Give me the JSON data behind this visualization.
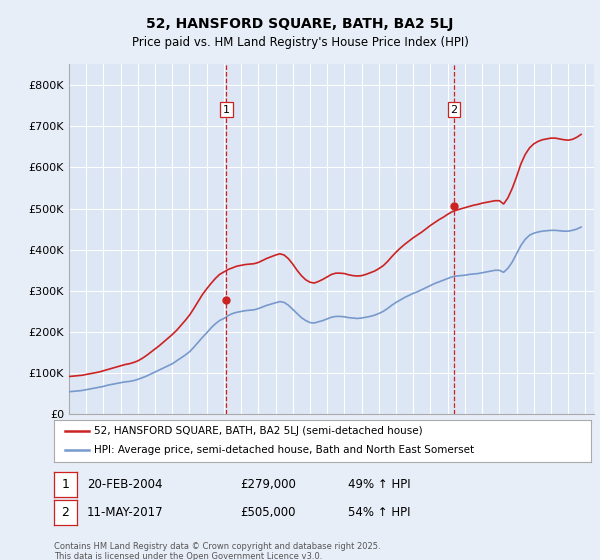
{
  "title": "52, HANSFORD SQUARE, BATH, BA2 5LJ",
  "subtitle": "Price paid vs. HM Land Registry's House Price Index (HPI)",
  "bg_color": "#e8eef8",
  "plot_bg_color": "#dde6f4",
  "grid_color": "#ffffff",
  "hpi_color": "#7799cc",
  "price_color": "#cc2222",
  "dashed_color": "#cc2222",
  "ylim": [
    0,
    850000
  ],
  "yticks": [
    0,
    100000,
    200000,
    300000,
    400000,
    500000,
    600000,
    700000,
    800000
  ],
  "ytick_labels": [
    "£0",
    "£100K",
    "£200K",
    "£300K",
    "£400K",
    "£500K",
    "£600K",
    "£700K",
    "£800K"
  ],
  "sale1_x": 2004.14,
  "sale1_price": 279000,
  "sale2_x": 2017.36,
  "sale2_price": 505000,
  "legend_line1": "52, HANSFORD SQUARE, BATH, BA2 5LJ (semi-detached house)",
  "legend_line2": "HPI: Average price, semi-detached house, Bath and North East Somerset",
  "table_row1": [
    "1",
    "20-FEB-2004",
    "£279,000",
    "49% ↑ HPI"
  ],
  "table_row2": [
    "2",
    "11-MAY-2017",
    "£505,000",
    "54% ↑ HPI"
  ],
  "footnote": "Contains HM Land Registry data © Crown copyright and database right 2025.\nThis data is licensed under the Open Government Licence v3.0.",
  "hpi_data_years": [
    1995,
    1995.25,
    1995.5,
    1995.75,
    1996,
    1996.25,
    1996.5,
    1996.75,
    1997,
    1997.25,
    1997.5,
    1997.75,
    1998,
    1998.25,
    1998.5,
    1998.75,
    1999,
    1999.25,
    1999.5,
    1999.75,
    2000,
    2000.25,
    2000.5,
    2000.75,
    2001,
    2001.25,
    2001.5,
    2001.75,
    2002,
    2002.25,
    2002.5,
    2002.75,
    2003,
    2003.25,
    2003.5,
    2003.75,
    2004,
    2004.25,
    2004.5,
    2004.75,
    2005,
    2005.25,
    2005.5,
    2005.75,
    2006,
    2006.25,
    2006.5,
    2006.75,
    2007,
    2007.25,
    2007.5,
    2007.75,
    2008,
    2008.25,
    2008.5,
    2008.75,
    2009,
    2009.25,
    2009.5,
    2009.75,
    2010,
    2010.25,
    2010.5,
    2010.75,
    2011,
    2011.25,
    2011.5,
    2011.75,
    2012,
    2012.25,
    2012.5,
    2012.75,
    2013,
    2013.25,
    2013.5,
    2013.75,
    2014,
    2014.25,
    2014.5,
    2014.75,
    2015,
    2015.25,
    2015.5,
    2015.75,
    2016,
    2016.25,
    2016.5,
    2016.75,
    2017,
    2017.25,
    2017.5,
    2017.75,
    2018,
    2018.25,
    2018.5,
    2018.75,
    2019,
    2019.25,
    2019.5,
    2019.75,
    2020,
    2020.25,
    2020.5,
    2020.75,
    2021,
    2021.25,
    2021.5,
    2021.75,
    2022,
    2022.25,
    2022.5,
    2022.75,
    2023,
    2023.25,
    2023.5,
    2023.75,
    2024,
    2024.25,
    2024.5,
    2024.75
  ],
  "hpi_values": [
    55000,
    56000,
    57000,
    58000,
    60000,
    62000,
    64000,
    66000,
    68000,
    71000,
    73000,
    75000,
    77000,
    79000,
    80000,
    82000,
    85000,
    89000,
    93000,
    98000,
    103000,
    108000,
    113000,
    118000,
    123000,
    130000,
    137000,
    144000,
    152000,
    163000,
    175000,
    187000,
    198000,
    210000,
    220000,
    228000,
    233000,
    240000,
    245000,
    248000,
    250000,
    252000,
    253000,
    254000,
    257000,
    261000,
    265000,
    268000,
    271000,
    274000,
    272000,
    265000,
    255000,
    245000,
    235000,
    228000,
    223000,
    222000,
    225000,
    228000,
    232000,
    236000,
    238000,
    238000,
    237000,
    235000,
    234000,
    233000,
    234000,
    236000,
    238000,
    241000,
    245000,
    250000,
    257000,
    265000,
    272000,
    278000,
    284000,
    289000,
    294000,
    298000,
    303000,
    308000,
    313000,
    318000,
    322000,
    326000,
    330000,
    334000,
    336000,
    337000,
    338000,
    340000,
    341000,
    342000,
    344000,
    346000,
    348000,
    350000,
    350000,
    345000,
    355000,
    370000,
    390000,
    410000,
    425000,
    435000,
    440000,
    443000,
    445000,
    446000,
    447000,
    447000,
    446000,
    445000,
    445000,
    447000,
    450000,
    455000
  ],
  "price_line_values": [
    92000,
    93000,
    94000,
    95000,
    97000,
    99000,
    101000,
    103000,
    106000,
    109000,
    112000,
    115000,
    118000,
    121000,
    123000,
    126000,
    130000,
    136000,
    143000,
    151000,
    159000,
    167000,
    176000,
    185000,
    194000,
    204000,
    216000,
    228000,
    241000,
    257000,
    274000,
    291000,
    305000,
    318000,
    330000,
    340000,
    346000,
    352000,
    356000,
    360000,
    362000,
    364000,
    365000,
    366000,
    369000,
    374000,
    379000,
    383000,
    387000,
    390000,
    387000,
    378000,
    365000,
    350000,
    337000,
    327000,
    321000,
    319000,
    323000,
    328000,
    334000,
    340000,
    343000,
    343000,
    342000,
    339000,
    337000,
    336000,
    337000,
    340000,
    344000,
    348000,
    354000,
    361000,
    371000,
    383000,
    394000,
    404000,
    413000,
    421000,
    429000,
    436000,
    443000,
    451000,
    459000,
    466000,
    473000,
    479000,
    486000,
    492000,
    496000,
    499000,
    502000,
    505000,
    508000,
    510000,
    513000,
    515000,
    517000,
    519000,
    519000,
    511000,
    526000,
    549000,
    577000,
    608000,
    631000,
    647000,
    657000,
    663000,
    667000,
    669000,
    671000,
    671000,
    669000,
    667000,
    666000,
    668000,
    673000,
    680000
  ]
}
